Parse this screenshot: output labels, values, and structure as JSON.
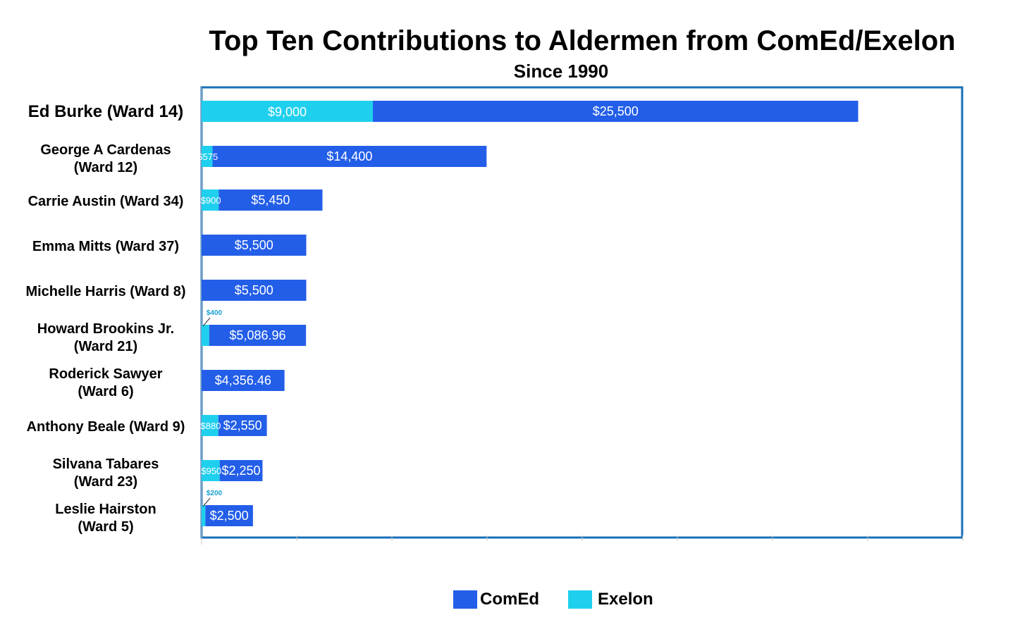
{
  "chart_data": {
    "type": "bar",
    "orientation": "horizontal",
    "stacked": true,
    "title": "Top Ten Contributions to Aldermen from ComEd/Exelon",
    "subtitle": "Since 1990",
    "categories": [
      "Ed Burke (Ward 14)",
      "George A Cardenas (Ward 12)",
      "Carrie Austin (Ward 34)",
      "Emma Mitts (Ward 37)",
      "Michelle Harris (Ward 8)",
      "Howard Brookins Jr. (Ward 21)",
      "Roderick Sawyer (Ward 6)",
      "Anthony Beale (Ward 9)",
      "Silvana Tabares (Ward 23)",
      "Leslie Hairston (Ward 5)"
    ],
    "category_lines": [
      [
        "Ed Burke (Ward 14)"
      ],
      [
        "George A Cardenas",
        "(Ward 12)"
      ],
      [
        "Carrie Austin (Ward 34)"
      ],
      [
        "Emma Mitts (Ward 37)"
      ],
      [
        "Michelle Harris (Ward 8)"
      ],
      [
        "Howard Brookins Jr.",
        "(Ward 21)"
      ],
      [
        "Roderick Sawyer",
        "(Ward 6)"
      ],
      [
        "Anthony Beale (Ward 9)"
      ],
      [
        "Silvana Tabares",
        "(Ward 23)"
      ],
      [
        "Leslie Hairston",
        "(Ward 5)"
      ]
    ],
    "series": [
      {
        "name": "Exelon",
        "color": "#1fd0ee",
        "values": [
          9000,
          575,
          900,
          0,
          0,
          400,
          0,
          880,
          950,
          200
        ],
        "labels": [
          "$9,000",
          "$575",
          "$900",
          "",
          "",
          "$400",
          "",
          "$880",
          "$950",
          "$200"
        ]
      },
      {
        "name": "ComEd",
        "color": "#235ee8",
        "values": [
          25500,
          14400,
          5450,
          5500,
          5500,
          5086.96,
          4356.46,
          2550,
          2250,
          2500
        ],
        "labels": [
          "$25,500",
          "$14,400",
          "$5,450",
          "$5,500",
          "$5,500",
          "$5,086.96",
          "$4,356.46",
          "$2,550",
          "$2,250",
          "$2,500"
        ]
      }
    ],
    "xlim": [
      0,
      40000
    ],
    "x_tick_step": 5000,
    "show_tick_labels": false,
    "grid": false,
    "legend_position": "bottom",
    "legend_order": [
      "ComEd",
      "Exelon"
    ],
    "frame_color": "#1a6fb8"
  }
}
